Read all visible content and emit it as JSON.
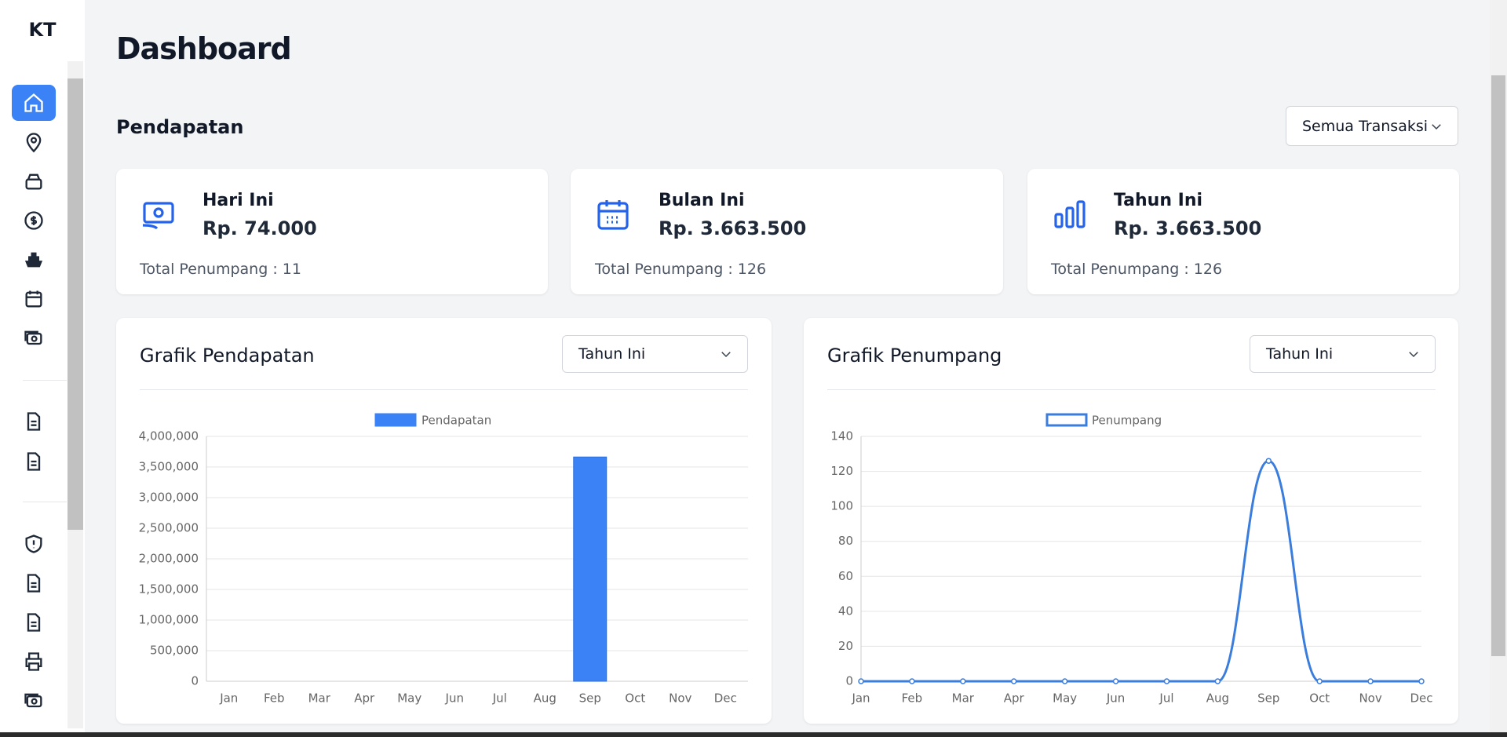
{
  "sidebar": {
    "logo": "KT"
  },
  "header": {
    "title": "Dashboard"
  },
  "section": {
    "title": "Pendapatan",
    "filter": "Semua Transaksi"
  },
  "cards": [
    {
      "title": "Hari Ini",
      "amount": "Rp. 74.000",
      "total": "Total Penumpang : 11"
    },
    {
      "title": "Bulan Ini",
      "amount": "Rp. 3.663.500",
      "total": "Total Penumpang : 126"
    },
    {
      "title": "Tahun Ini",
      "amount": "Rp. 3.663.500",
      "total": "Total Penumpang : 126"
    }
  ],
  "chart_data": [
    {
      "type": "bar",
      "title": "Grafik Pendapatan",
      "filter": "Tahun Ini",
      "categories": [
        "Jan",
        "Feb",
        "Mar",
        "Apr",
        "May",
        "Jun",
        "Jul",
        "Aug",
        "Sep",
        "Oct",
        "Nov",
        "Dec"
      ],
      "series": [
        {
          "name": "Pendapatan",
          "color": "#3b82f6",
          "values": [
            0,
            0,
            0,
            0,
            0,
            0,
            0,
            0,
            3663500,
            0,
            0,
            0
          ]
        }
      ],
      "ylim": [
        0,
        4000000
      ],
      "yticks": [
        0,
        {
          "value": 500000,
          "label": "500,000"
        },
        {
          "value": 1000000,
          "label": "1,000,000"
        },
        {
          "value": 1500000,
          "label": "1,500,000"
        },
        {
          "value": 2000000,
          "label": "2,000,000"
        },
        {
          "value": 2500000,
          "label": "2,500,000"
        },
        {
          "value": 3000000,
          "label": "3,000,000"
        },
        {
          "value": 3500000,
          "label": "3,500,000"
        },
        {
          "value": 4000000,
          "label": "4,000,000"
        }
      ],
      "grid": true,
      "legend": "top"
    },
    {
      "type": "line",
      "title": "Grafik Penumpang",
      "filter": "Tahun Ini",
      "categories": [
        "Jan",
        "Feb",
        "Mar",
        "Apr",
        "May",
        "Jun",
        "Jul",
        "Aug",
        "Sep",
        "Oct",
        "Nov",
        "Dec"
      ],
      "series": [
        {
          "name": "Penumpang",
          "color": "#3b7ddd",
          "values": [
            0,
            0,
            0,
            0,
            0,
            0,
            0,
            0,
            126,
            0,
            0,
            0
          ]
        }
      ],
      "ylim": [
        0,
        140
      ],
      "yticks": [
        0,
        20,
        40,
        60,
        80,
        100,
        120,
        140
      ],
      "grid": true,
      "legend": "top"
    }
  ]
}
